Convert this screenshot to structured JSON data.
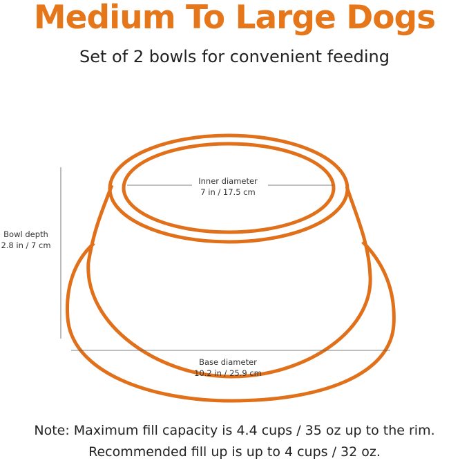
{
  "title": "Medium To Large Dogs",
  "subtitle": "Set of 2 bowls for convenient feeding",
  "diagram": {
    "inner_diameter": {
      "label": "Inner diameter",
      "value": "7 in / 17.5 cm"
    },
    "bowl_depth": {
      "label": "Bowl depth",
      "value": "2.8 in / 7 cm"
    },
    "base_diameter": {
      "label": "Base diameter",
      "value": "10.2 in / 25.9 cm"
    },
    "outline_color": "#e0701a"
  },
  "note": {
    "line1": "Note: Maximum fill capacity is 4.4 cups / 35 oz up to the rim.",
    "line2": "Recommended fill up is up to 4 cups / 32 oz."
  }
}
